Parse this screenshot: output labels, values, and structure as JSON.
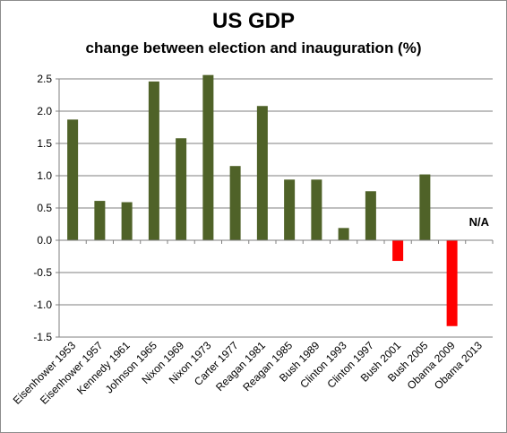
{
  "chart_data": {
    "type": "bar",
    "title": "US GDP",
    "subtitle": "change between election and inauguration (%)",
    "xlabel": "",
    "ylabel": "",
    "categories": [
      "Eisenhower 1953",
      "Eisenhower 1957",
      "Kennedy 1961",
      "Johnson 1965",
      "Nixon 1969",
      "Nixon 1973",
      "Carter 1977",
      "Reagan 1981",
      "Reagan 1985",
      "Bush 1989",
      "Clinton 1993",
      "Clinton 1997",
      "Bush 2001",
      "Bush 2005",
      "Obama 2009",
      "Obama 2013"
    ],
    "values": [
      1.87,
      0.61,
      0.59,
      2.46,
      1.58,
      2.56,
      1.15,
      2.08,
      0.94,
      0.94,
      0.19,
      0.76,
      -0.32,
      1.02,
      -1.33,
      null
    ],
    "annotations": [
      {
        "category": "Obama 2013",
        "text": "N/A"
      }
    ],
    "ylim": [
      -1.5,
      2.5
    ],
    "yticks": [
      2.5,
      2.0,
      1.5,
      1.0,
      0.5,
      0.0,
      -0.5,
      -1.0,
      -1.5
    ],
    "ytick_labels": [
      "2.5",
      "2.0",
      "1.5",
      "1.0",
      "0.5",
      "0.0",
      "-0.5",
      "-1.0",
      "-1.5"
    ],
    "grid": true,
    "legend": "none",
    "colors": {
      "positive": "#4f6228",
      "negative": "#ff0000",
      "grid": "#7f7f7f",
      "axis": "#7f7f7f"
    }
  }
}
